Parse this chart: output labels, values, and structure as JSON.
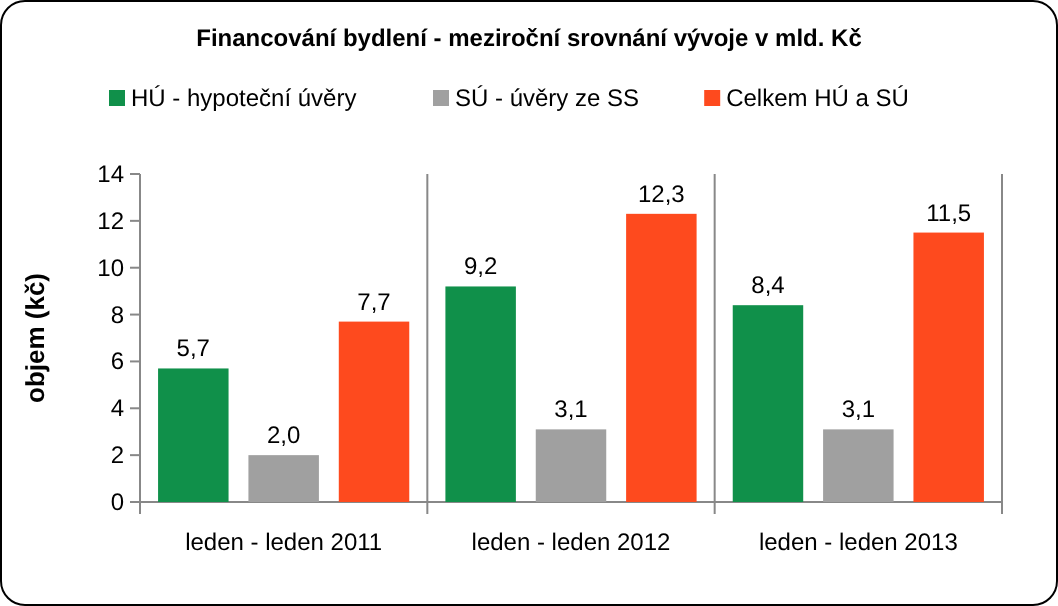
{
  "chart_data": {
    "type": "bar",
    "title": "Financování bydlení - meziroční srovnání vývoje v mld. Kč",
    "ylabel": "objem (kč)",
    "categories": [
      "leden - leden 2011",
      "leden - leden 2012",
      "leden - leden 2013"
    ],
    "series": [
      {
        "name": "HÚ - hypoteční úvěry",
        "color": "#10904a",
        "values": [
          5.7,
          9.2,
          8.4
        ],
        "value_labels": [
          "5,7",
          "9,2",
          "8,4"
        ]
      },
      {
        "name": "SÚ - úvěry ze SS",
        "color": "#a0a0a0",
        "values": [
          2.0,
          3.1,
          3.1
        ],
        "value_labels": [
          "2,0",
          "3,1",
          "3,1"
        ]
      },
      {
        "name": "Celkem HÚ a SÚ",
        "color": "#fe4a1e",
        "values": [
          7.7,
          12.3,
          11.5
        ],
        "value_labels": [
          "7,7",
          "12,3",
          "11,5"
        ]
      }
    ],
    "ylim": [
      0,
      14
    ],
    "yticks": [
      0,
      2,
      4,
      6,
      8,
      10,
      12,
      14
    ],
    "legend": "top",
    "grid": false
  }
}
